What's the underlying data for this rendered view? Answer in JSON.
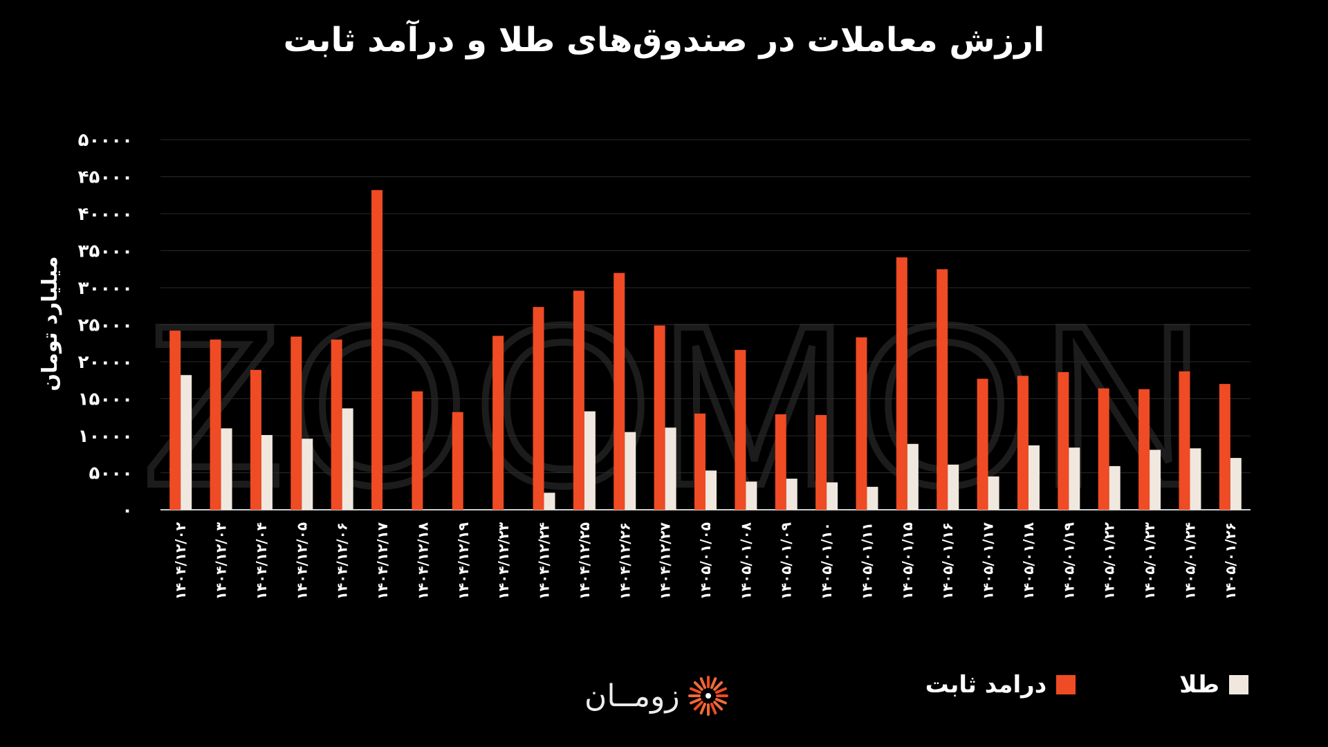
{
  "colors": {
    "background": "#000000",
    "fixed_income": "#ef4b24",
    "gold": "#f0e8de",
    "grid": "#2a2a2a"
  },
  "brand": {
    "logo_text": "زومــان",
    "watermark": "ZOOMON"
  },
  "chart_data": {
    "type": "bar",
    "title": "ارزش معاملات در صندوق‌های طلا و درآمد ثابت",
    "ylabel": "میلیارد تومان",
    "xlabel": "",
    "ylim": [
      0,
      50000
    ],
    "yticks": [
      0,
      5000,
      10000,
      15000,
      20000,
      25000,
      30000,
      35000,
      40000,
      45000,
      50000
    ],
    "ytick_labels": [
      "۰",
      "۵۰۰۰",
      "۱۰۰۰۰",
      "۱۵۰۰۰",
      "۲۰۰۰۰",
      "۲۵۰۰۰",
      "۳۰۰۰۰",
      "۳۵۰۰۰",
      "۴۰۰۰۰",
      "۴۵۰۰۰",
      "۵۰۰۰۰"
    ],
    "grid": true,
    "legend_position": "bottom",
    "categories": [
      "۱۴۰۴/۱۲/۰۲",
      "۱۴۰۴/۱۲/۰۳",
      "۱۴۰۴/۱۲/۰۴",
      "۱۴۰۴/۱۲/۰۵",
      "۱۴۰۴/۱۲/۰۶",
      "۱۴۰۴/۱۲/۱۷",
      "۱۴۰۴/۱۲/۱۸",
      "۱۴۰۴/۱۲/۱۹",
      "۱۴۰۴/۱۲/۲۳",
      "۱۴۰۴/۱۲/۲۴",
      "۱۴۰۴/۱۲/۲۵",
      "۱۴۰۴/۱۲/۲۶",
      "۱۴۰۴/۱۲/۲۷",
      "۱۴۰۵/۰۱/۰۵",
      "۱۴۰۵/۰۱/۰۸",
      "۱۴۰۵/۰۱/۰۹",
      "۱۴۰۵/۰۱/۱۰",
      "۱۴۰۵/۰۱/۱۱",
      "۱۴۰۵/۰۱/۱۵",
      "۱۴۰۵/۰۱/۱۶",
      "۱۴۰۵/۰۱/۱۷",
      "۱۴۰۵/۰۱/۱۸",
      "۱۴۰۵/۰۱/۱۹",
      "۱۴۰۵/۰۱/۲۲",
      "۱۴۰۵/۰۱/۲۳",
      "۱۴۰۵/۰۱/۲۴",
      "۱۴۰۵/۰۱/۲۶"
    ],
    "series": [
      {
        "name": "درامد ثابت",
        "color": "#ef4b24",
        "values": [
          24200,
          23000,
          18900,
          23400,
          23000,
          43200,
          16000,
          13200,
          23500,
          27400,
          29600,
          32000,
          24900,
          13000,
          21600,
          12900,
          12800,
          23300,
          34100,
          32500,
          17700,
          18100,
          18600,
          16400,
          16300,
          18700,
          17000
        ]
      },
      {
        "name": "طلا",
        "color": "#f0e8de",
        "values": [
          18200,
          11000,
          10100,
          9600,
          13700,
          0,
          0,
          0,
          0,
          2300,
          13300,
          10500,
          11100,
          5300,
          3800,
          4200,
          3700,
          3100,
          8900,
          6100,
          4500,
          8700,
          8400,
          5900,
          8100,
          8300,
          7000
        ]
      }
    ]
  },
  "legend": [
    {
      "label": "درامد ثابت",
      "color": "#ef4b24"
    },
    {
      "label": "طلا",
      "color": "#f0e8de"
    }
  ]
}
